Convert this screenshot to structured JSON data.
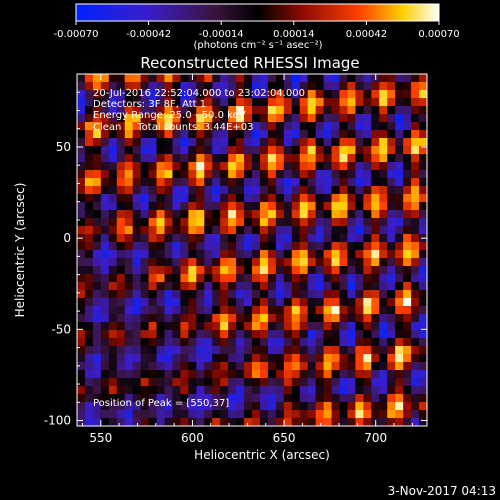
{
  "chart_data": {
    "type": "heatmap",
    "title": "Reconstructed RHESSI Image",
    "xlabel": "Heliocentric X (arcsec)",
    "ylabel": "Heliocentric Y (arcsec)",
    "xlim": [
      537,
      728
    ],
    "ylim": [
      -103,
      90
    ],
    "xticks": [
      550,
      600,
      650,
      700
    ],
    "yticks": [
      -100,
      -50,
      0,
      50
    ],
    "colorbar": {
      "range": [
        -0.0007,
        0.0007
      ],
      "ticks": [
        -0.0007,
        -0.00042,
        -0.00014,
        0.00014,
        0.00042,
        0.0007
      ],
      "tick_labels": [
        "-0.00070",
        "-0.00042",
        "-0.00014",
        "0.00014",
        "0.00042",
        "0.00070"
      ],
      "unit_label": "(photons cm⁻² s⁻¹ asec⁻²)",
      "colormap": "blue-purple-red-yellow-white"
    },
    "annotations": [
      "20-Jul-2016 22:52:04.000 to 23:02:04.000",
      "Detectors: 3F 8F, Att 1",
      "Energy Range: 25.0 - 50.0 keV",
      "Clean     Total counts: 3.44E+03",
      "Position of Peak = [550,37]"
    ],
    "peak": [
      550,
      37
    ],
    "grid": false
  },
  "footer": {
    "timestamp": "3-Nov-2017 04:13"
  }
}
